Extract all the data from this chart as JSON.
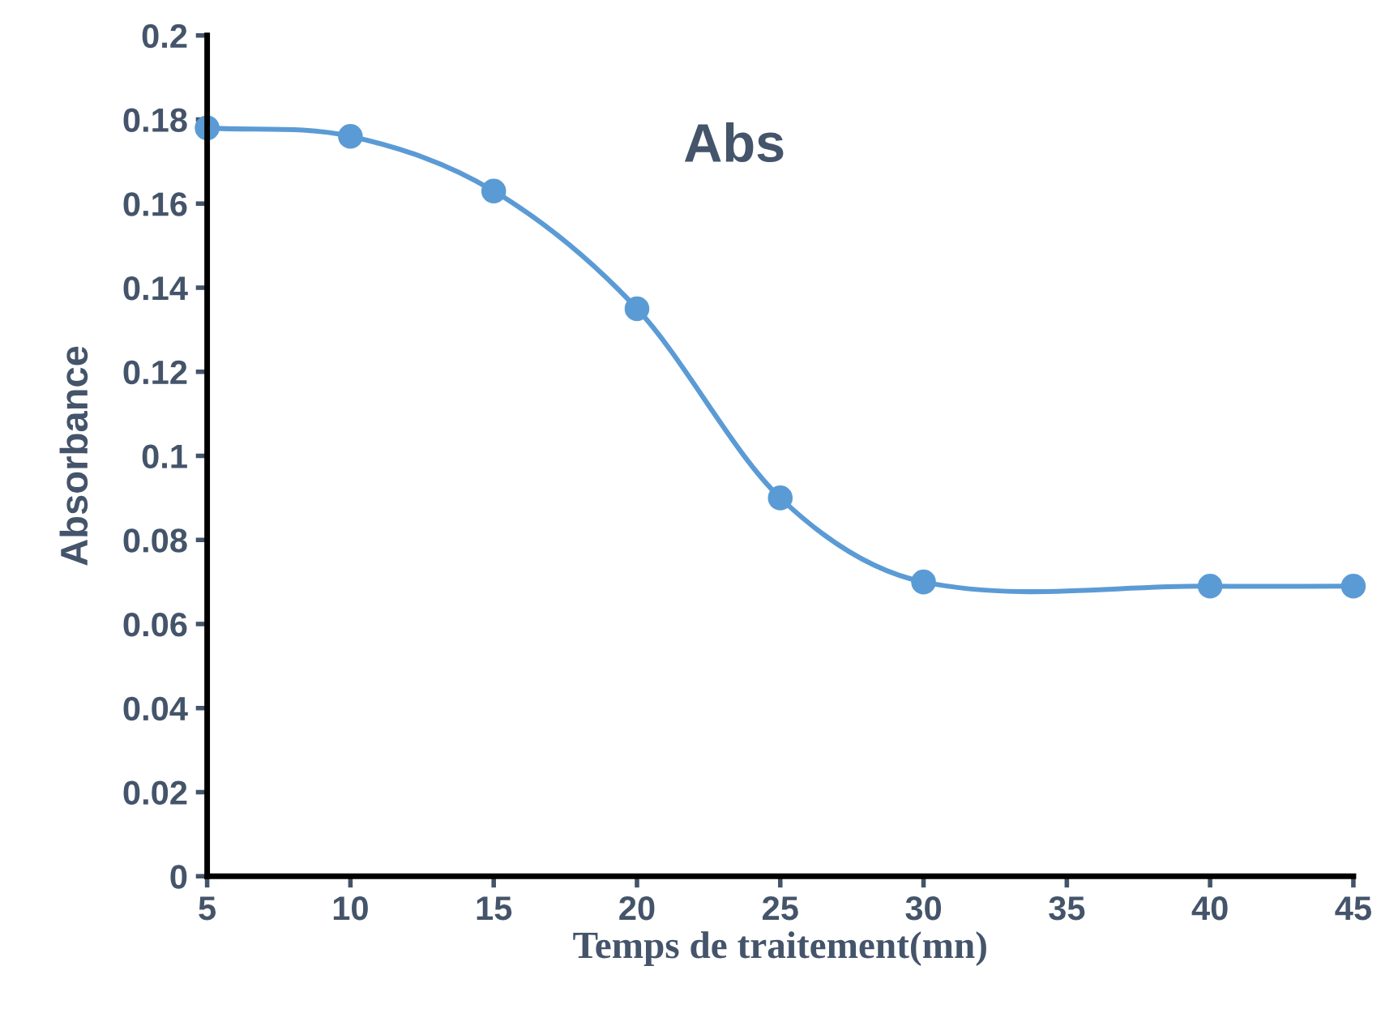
{
  "chart_data": {
    "type": "line",
    "title": "Abs",
    "xlabel": "Temps de traitement(mn)",
    "ylabel": "Absorbance",
    "x": [
      5,
      10,
      15,
      20,
      25,
      30,
      40,
      45
    ],
    "series": [
      {
        "color": "#5b9bd5",
        "values": [
          0.178,
          0.176,
          0.163,
          0.135,
          0.09,
          0.07,
          0.069,
          0.069
        ]
      }
    ],
    "xlim": [
      5,
      45
    ],
    "xticks": [
      5,
      10,
      15,
      20,
      25,
      30,
      35,
      40,
      45
    ],
    "ylim": [
      0,
      0.2
    ],
    "yticks": [
      0,
      0.02,
      0.04,
      0.06,
      0.08,
      0.1,
      0.12,
      0.14,
      0.16,
      0.18,
      0.2
    ],
    "grid": false,
    "legend": false,
    "marker": "circle",
    "line_style": "solid"
  }
}
